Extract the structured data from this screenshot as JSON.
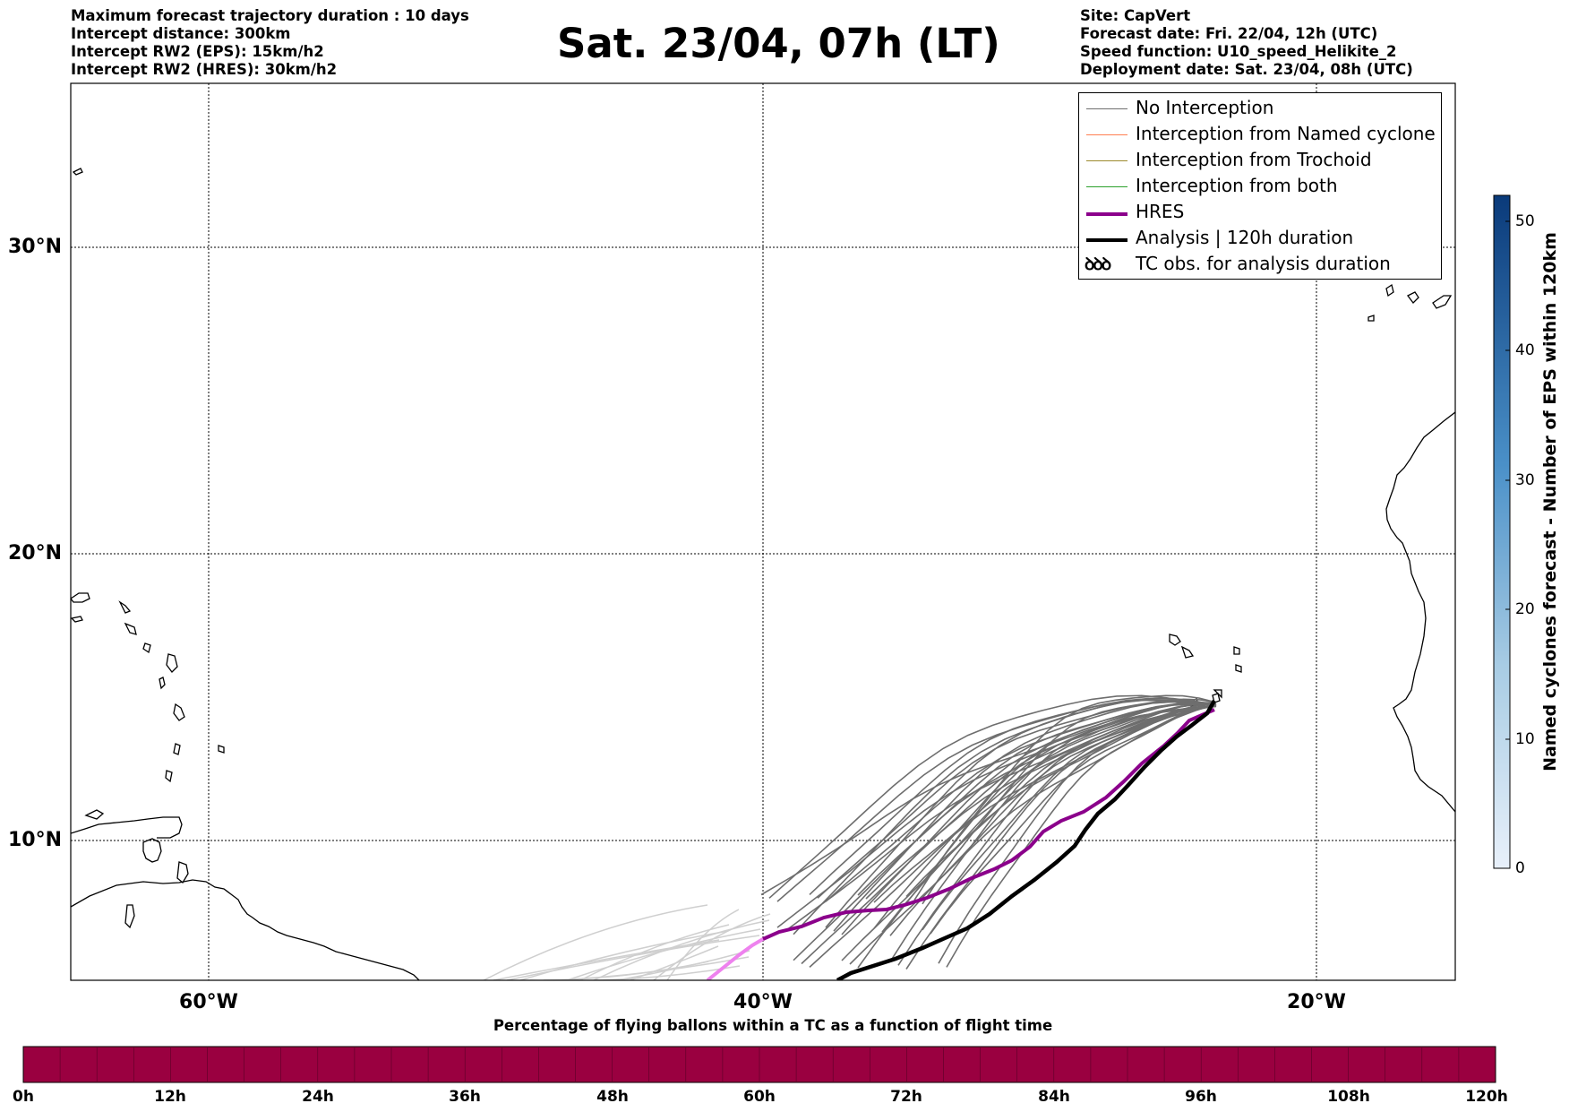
{
  "header": {
    "left_lines": [
      "Maximum forecast trajectory duration : 10 days",
      "Intercept distance: 300km",
      "Intercept RW2 (EPS):  15km/h2",
      "Intercept RW2 (HRES): 30km/h2"
    ],
    "right_lines": [
      "Site: CapVert",
      "Forecast date: Fri. 22/04, 12h (UTC)",
      "Speed function: U10_speed_Helikite_2",
      "Deployment date: Sat. 23/04, 08h (UTC)"
    ],
    "title": "Sat. 23/04, 07h (LT)"
  },
  "map": {
    "lat_labels": [
      "30°N",
      "20°N",
      "10°N"
    ],
    "lon_labels": [
      "60°W",
      "40°W",
      "20°W"
    ],
    "colors": {
      "no_interception": "#6e6e6e",
      "named_cyclone": "#ff7f50",
      "trochoid": "#9c8a2e",
      "both": "#2ca02c",
      "hres": "#8b008b",
      "analysis": "#000000",
      "faded_tracks": "#cfcfcf",
      "hres_faded": "#ee82ee"
    }
  },
  "legend": {
    "items": [
      {
        "label": "No Interception",
        "color": "#6e6e6e",
        "width": 1.5,
        "kind": "line"
      },
      {
        "label": "Interception from Named cyclone",
        "color": "#ff7f50",
        "width": 1.5,
        "kind": "line"
      },
      {
        "label": "Interception from Trochoid",
        "color": "#9c8a2e",
        "width": 1.5,
        "kind": "line"
      },
      {
        "label": "Interception from both",
        "color": "#2ca02c",
        "width": 1.5,
        "kind": "line"
      },
      {
        "label": "HRES",
        "color": "#8b008b",
        "width": 4,
        "kind": "line"
      },
      {
        "label": "Analysis | 120h duration",
        "color": "#000000",
        "width": 4.5,
        "kind": "line"
      },
      {
        "label": "TC obs. for analysis duration",
        "color": "#000000",
        "icon_text": "ꝺꝺꝺ",
        "kind": "icon"
      }
    ]
  },
  "colorbar_vertical": {
    "title": "Named cyclones forecast - Number of EPS within 120km",
    "ticks": [
      "0",
      "10",
      "20",
      "30",
      "40",
      "50"
    ],
    "min": 0,
    "max": 52
  },
  "colorbar_horizontal": {
    "title": "Percentage of flying ballons within a TC as a function of flight time",
    "ticks": [
      "0h",
      "12h",
      "24h",
      "36h",
      "48h",
      "60h",
      "72h",
      "84h",
      "96h",
      "108h",
      "120h"
    ],
    "fill_color": "#9a0040"
  }
}
